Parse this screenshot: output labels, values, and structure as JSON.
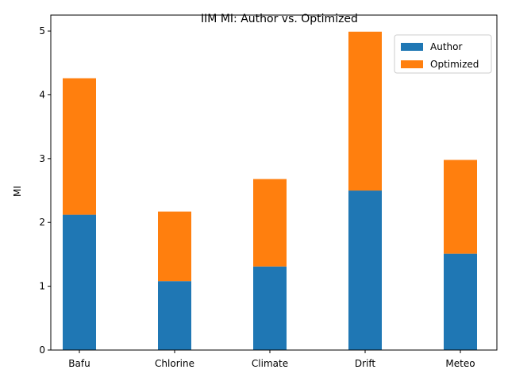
{
  "chart_data": {
    "type": "bar",
    "stacked": true,
    "title": "IIM MI: Author vs. Optimized",
    "xlabel": "",
    "ylabel": "MI",
    "categories": [
      "Bafu",
      "Chlorine",
      "Climate",
      "Drift",
      "Meteo"
    ],
    "series": [
      {
        "name": "Author",
        "values": [
          2.12,
          1.08,
          1.31,
          2.5,
          1.51
        ],
        "color": "#1f77b4"
      },
      {
        "name": "Optimized",
        "values": [
          2.14,
          1.09,
          1.37,
          2.49,
          1.47
        ],
        "color": "#ff7f0e"
      }
    ],
    "ylim": [
      0,
      5.25
    ],
    "yticks": [
      "0",
      "1",
      "2",
      "3",
      "4",
      "5"
    ],
    "grid": false,
    "legend_position": "top-right"
  }
}
